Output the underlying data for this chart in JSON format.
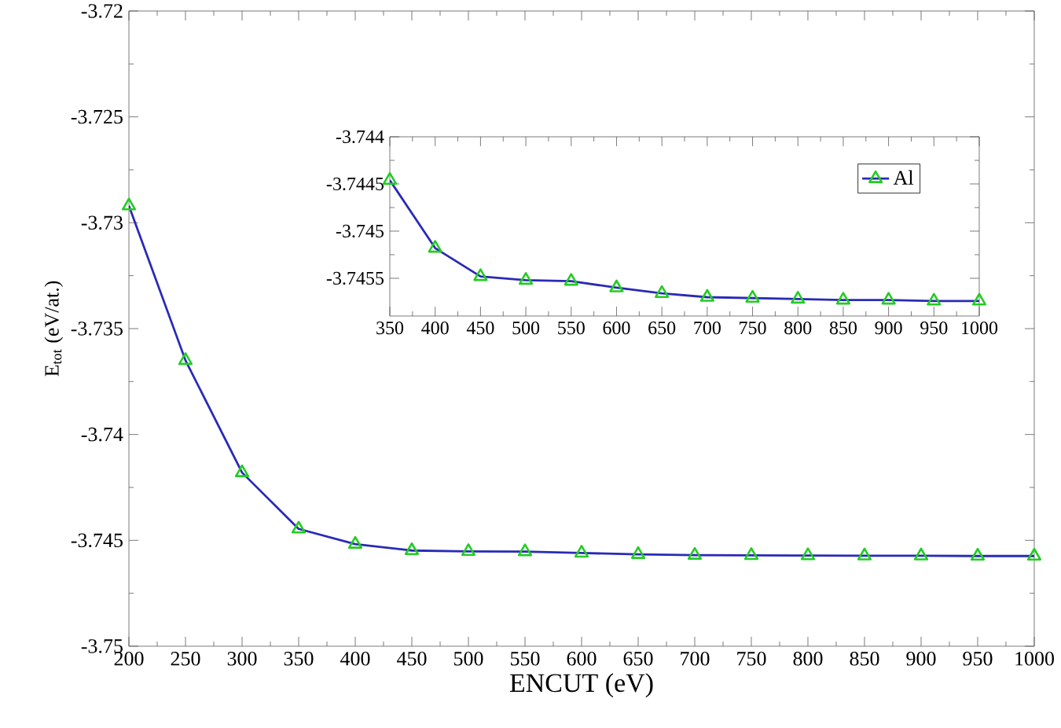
{
  "chart_data": [
    {
      "type": "line",
      "xlabel": "ENCUT (eV)",
      "ylabel": "E$_{tot}$ (eV/at.)",
      "x": [
        200,
        250,
        300,
        350,
        400,
        450,
        500,
        550,
        600,
        650,
        700,
        750,
        800,
        850,
        900,
        950,
        1000
      ],
      "series": [
        {
          "color": "#2a2ab8",
          "values": [
            -3.7292,
            -3.7365,
            -3.7418,
            -3.74446,
            -3.74518,
            -3.74548,
            -3.74552,
            -3.74553,
            -3.7456,
            -3.74566,
            -3.7457,
            -3.74571,
            -3.74572,
            -3.74573,
            -3.74573,
            -3.74574,
            -3.74574
          ]
        }
      ],
      "xlim": [
        200,
        1000
      ],
      "ylim": [
        -3.75,
        -3.72
      ],
      "xticks": [
        200,
        250,
        300,
        350,
        400,
        450,
        500,
        550,
        600,
        650,
        700,
        750,
        800,
        850,
        900,
        950,
        1000
      ],
      "yticks": [
        -3.75,
        -3.745,
        -3.74,
        -3.735,
        -3.73,
        -3.725,
        -3.72
      ],
      "marker": "triangle",
      "line_style": "solid",
      "grid": false,
      "legend": false
    },
    {
      "type": "line",
      "x": [
        350,
        400,
        450,
        500,
        550,
        600,
        650,
        700,
        750,
        800,
        850,
        900,
        950,
        1000
      ],
      "series": [
        {
          "name": "Al",
          "color": "#2a2ab8",
          "values": [
            -3.74446,
            -3.74518,
            -3.74548,
            -3.74552,
            -3.74553,
            -3.7456,
            -3.74566,
            -3.7457,
            -3.74571,
            -3.74572,
            -3.74573,
            -3.74573,
            -3.74574,
            -3.74574
          ]
        }
      ],
      "xlim": [
        350,
        1000
      ],
      "ylim": [
        -3.7459,
        -3.744
      ],
      "xticks": [
        350,
        400,
        450,
        500,
        550,
        600,
        650,
        700,
        750,
        800,
        850,
        900,
        950,
        1000
      ],
      "yticks": [
        -3.7455,
        -3.745,
        -3.7445,
        -3.744
      ],
      "marker": "triangle",
      "line_style": "solid",
      "grid": false,
      "legend": "top right"
    }
  ]
}
